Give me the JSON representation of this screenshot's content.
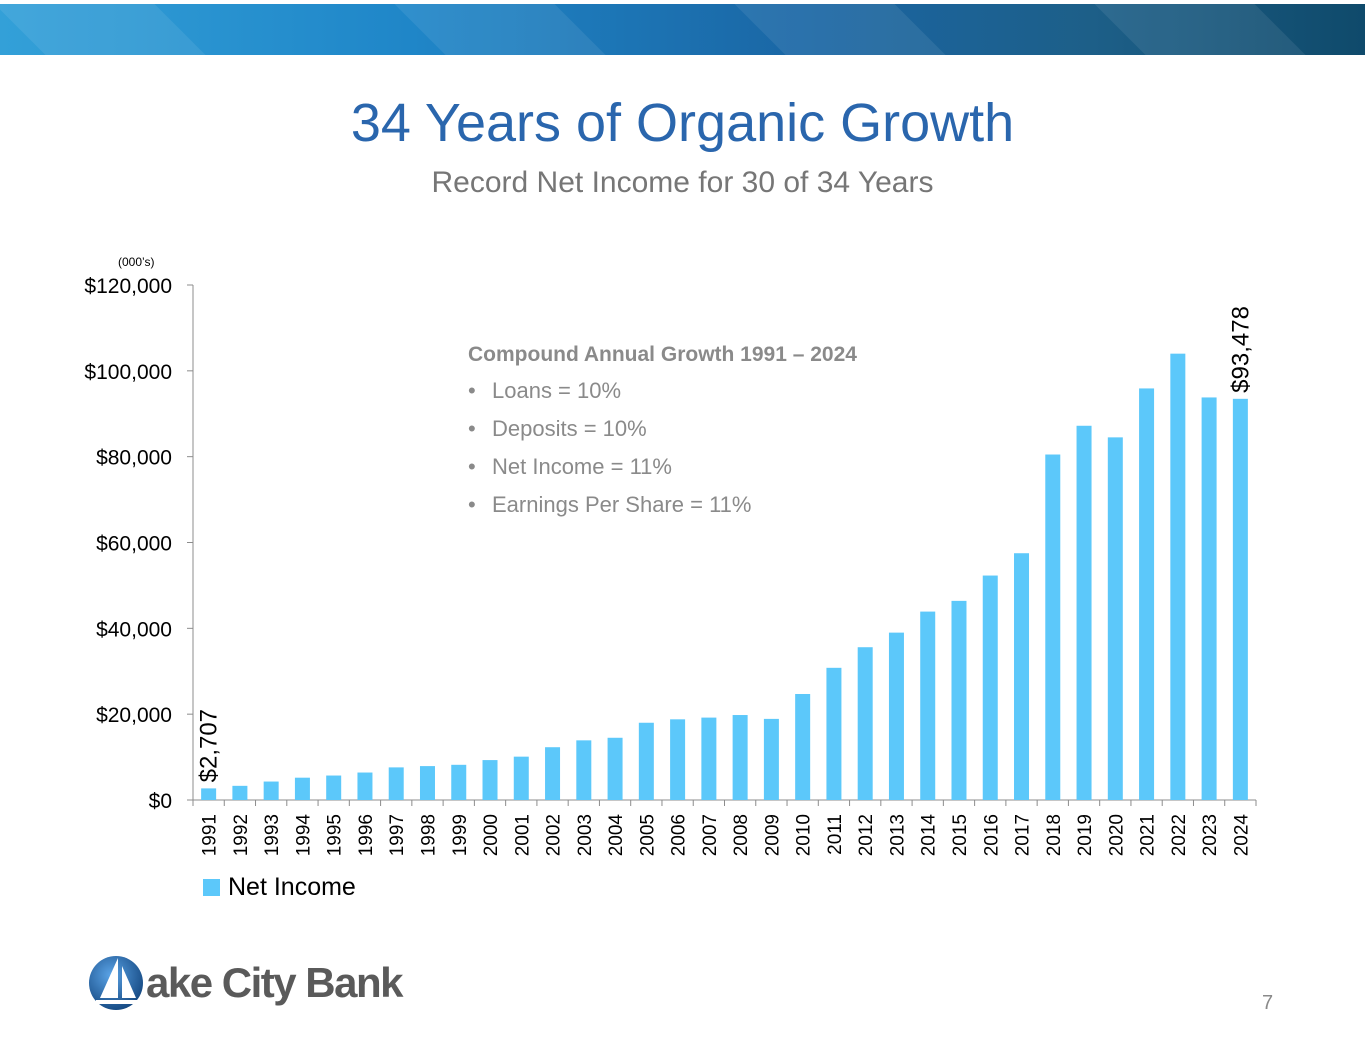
{
  "slide": {
    "title": "34 Years of Organic Growth",
    "subtitle": "Record Net Income for 30 of 34 Years",
    "units_note": "(000’s)",
    "page_number": "7",
    "brand_name": "Lake City Bank",
    "brand_wordmark": "ake City Bank"
  },
  "callout": {
    "heading": "Compound Annual Growth 1991 – 2024",
    "bullets": [
      "Loans = 10%",
      "Deposits = 10%",
      "Net Income = 11%",
      "Earnings Per Share = 11%"
    ]
  },
  "chart_data": {
    "type": "bar",
    "title": "",
    "xlabel": "",
    "ylabel": "",
    "categories": [
      "1991",
      "1992",
      "1993",
      "1994",
      "1995",
      "1996",
      "1997",
      "1998",
      "1999",
      "2000",
      "2001",
      "2002",
      "2003",
      "2004",
      "2005",
      "2006",
      "2007",
      "2008",
      "2009",
      "2010",
      "2011",
      "2012",
      "2013",
      "2014",
      "2015",
      "2016",
      "2017",
      "2018",
      "2019",
      "2020",
      "2021",
      "2022",
      "2023",
      "2024"
    ],
    "series": [
      {
        "name": "Net Income",
        "color": "#5cc8fa",
        "values": [
          2707,
          3300,
          4300,
          5200,
          5700,
          6400,
          7600,
          7900,
          8200,
          9300,
          10100,
          12300,
          13900,
          14500,
          18000,
          18800,
          19200,
          19800,
          18900,
          24700,
          30800,
          35600,
          39000,
          43900,
          46400,
          52300,
          57500,
          80500,
          87200,
          84500,
          95900,
          104000,
          93800,
          93478
        ]
      }
    ],
    "ylim": [
      0,
      120000
    ],
    "yticks": [
      0,
      20000,
      40000,
      60000,
      80000,
      100000,
      120000
    ],
    "ytick_labels": [
      "$0",
      "$20,000",
      "$40,000",
      "$60,000",
      "$80,000",
      "$100,000",
      "$120,000"
    ],
    "annotations": [
      {
        "category": "1991",
        "text": "$2,707"
      },
      {
        "category": "2024",
        "text": "$93,478"
      }
    ],
    "legend": {
      "position": "bottom-left"
    },
    "grid": false
  }
}
